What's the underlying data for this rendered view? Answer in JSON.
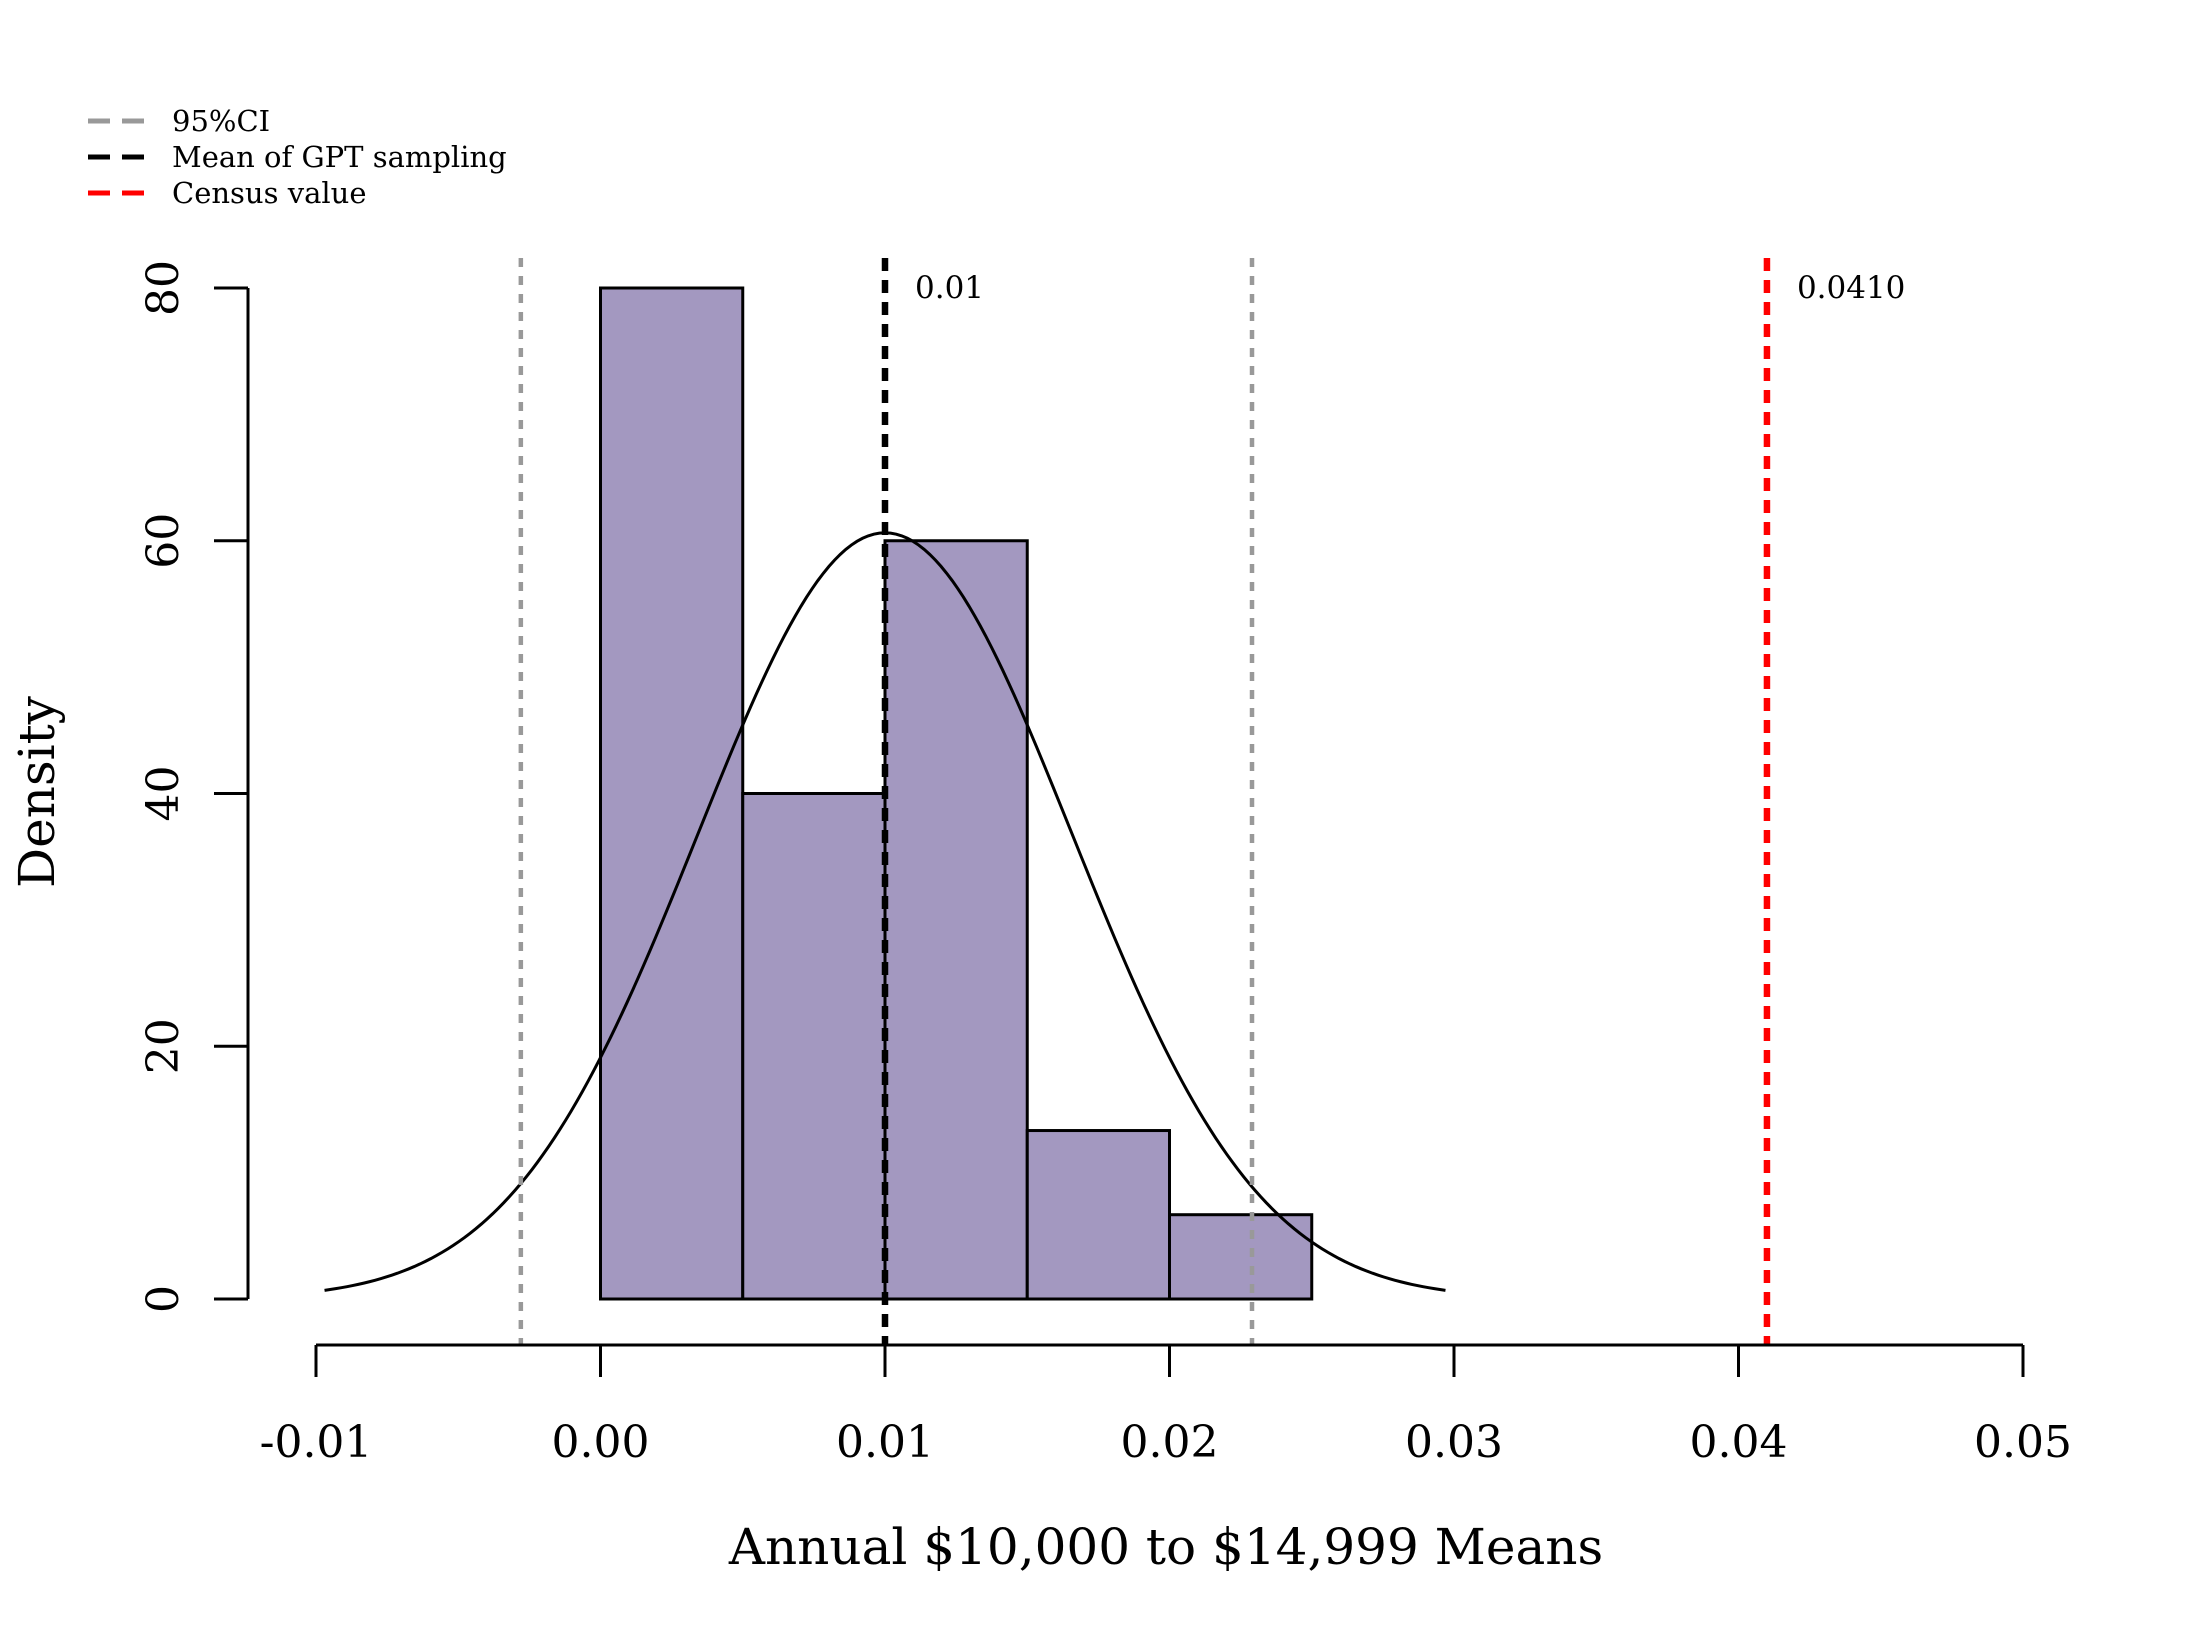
{
  "chart_data": {
    "type": "bar",
    "subtype": "histogram",
    "xlabel": "Annual $10,000 to $14,999 Means",
    "ylabel": "Density",
    "xlim": [
      -0.01,
      0.05
    ],
    "ylim": [
      0,
      80
    ],
    "x_ticks": [
      -0.01,
      0.0,
      0.01,
      0.02,
      0.03,
      0.04,
      0.05
    ],
    "x_tick_labels": [
      "-0.01",
      "0.00",
      "0.01",
      "0.02",
      "0.03",
      "0.04",
      "0.05"
    ],
    "y_ticks": [
      0,
      20,
      40,
      60,
      80
    ],
    "y_tick_labels": [
      "0",
      "20",
      "40",
      "60",
      "80"
    ],
    "bins": [
      {
        "x0": 0.0,
        "x1": 0.005,
        "density": 80
      },
      {
        "x0": 0.005,
        "x1": 0.01,
        "density": 40
      },
      {
        "x0": 0.01,
        "x1": 0.015,
        "density": 60
      },
      {
        "x0": 0.015,
        "x1": 0.02,
        "density": 13.33
      },
      {
        "x0": 0.02,
        "x1": 0.025,
        "density": 6.67
      }
    ],
    "bar_color": "#a398c0",
    "normal_curve": {
      "mean": 0.01,
      "sd": 0.00658,
      "x_from": -0.0097,
      "x_to": 0.0297
    },
    "reference_lines": [
      {
        "key": "ci_lower",
        "x": -0.0028,
        "color": "#999999",
        "label": ""
      },
      {
        "key": "ci_upper",
        "x": 0.0229,
        "color": "#999999",
        "label": ""
      },
      {
        "key": "mean",
        "x": 0.01,
        "color": "#000000",
        "label": "0.01"
      },
      {
        "key": "census",
        "x": 0.041,
        "color": "#ff0000",
        "label": "0.0410"
      }
    ],
    "legend": {
      "position": "top-left",
      "items": [
        {
          "label": "95%CI",
          "color": "#999999"
        },
        {
          "label": "Mean of GPT sampling",
          "color": "#000000"
        },
        {
          "label": "Census value",
          "color": "#ff0000"
        }
      ]
    },
    "grid": false
  }
}
